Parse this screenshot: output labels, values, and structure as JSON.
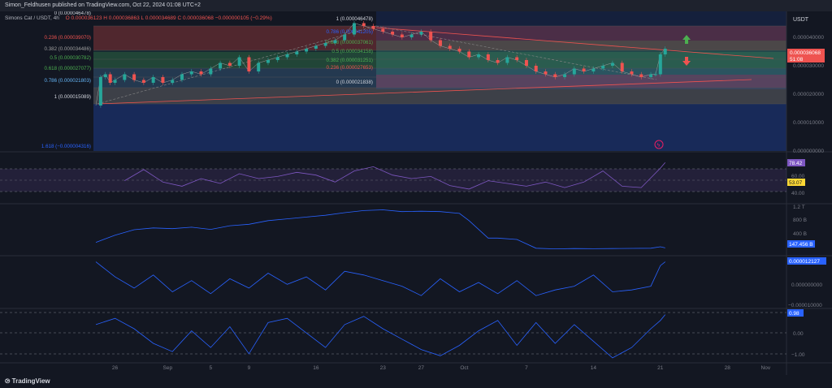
{
  "header": {
    "attribution": "Simon_Feldhusen published on TradingView.com, Oct 22, 2024 01:08 UTC+2"
  },
  "symbol": {
    "name": "Simons Cat / USDT, 4h",
    "ohlc": "O 0.000036123  H 0.000036863  L 0.000034689  C 0.000036068  −0.000000105 (−0.29%)",
    "currency": "USDT"
  },
  "price_badge": {
    "price": "0.000036068",
    "countdown": "51:08"
  },
  "colors": {
    "up": "#26a69a",
    "down": "#ef5350",
    "rsi": "#7e57c2",
    "line": "#2962ff",
    "bg": "#131722"
  },
  "fib_left": [
    {
      "label": "0 (0.000046478)"
    },
    {
      "label": "0.236 (0.000039070)"
    },
    {
      "label": "0.382 (0.000034486)"
    },
    {
      "label": "0.5 (0.000030782)"
    },
    {
      "label": "0.618 (0.000027077)"
    },
    {
      "label": "0.786 (0.000021803)"
    },
    {
      "label": "1 (0.000015089)"
    },
    {
      "label": "1.618 (−0.000004316)"
    }
  ],
  "fib_right": [
    {
      "label": "1 (0.000046478)"
    },
    {
      "label": "0.786 (0.000041205)"
    },
    {
      "label": "0.618 (0.000037061)"
    },
    {
      "label": "0.5 (0.000034158)"
    },
    {
      "label": "0.382 (0.000031251)"
    },
    {
      "label": "0.236 (0.000027653)"
    },
    {
      "label": "0 (0.000021838)"
    }
  ],
  "price_axis": [
    {
      "label": "0.000040000",
      "v": 40
    },
    {
      "label": "0.000030000",
      "v": 30
    },
    {
      "label": "0.000020000",
      "v": 20
    },
    {
      "label": "0.000010000",
      "v": 10
    },
    {
      "label": "0.000000000",
      "v": 0
    }
  ],
  "rsi_axis": {
    "badge": "78.42",
    "sma_badge": "53.07",
    "ticks": [
      "60.00",
      "40.00"
    ]
  },
  "obv_axis": {
    "ticks": [
      "1.2 T",
      "800 B",
      "400 B"
    ],
    "badge": "147.456 B"
  },
  "osc3_axis": {
    "badge": "0.000012127",
    "ticks": [
      "0.000000000",
      "−0.000010000"
    ]
  },
  "osc4_axis": {
    "badge": "0.98",
    "ticks": [
      "0.00",
      "−1.00"
    ]
  },
  "time_axis": [
    {
      "label": "26",
      "t": 26
    },
    {
      "label": "Sep",
      "t": 37
    },
    {
      "label": "5",
      "t": 46
    },
    {
      "label": "9",
      "t": 54
    },
    {
      "label": "16",
      "t": 68
    },
    {
      "label": "23",
      "t": 82
    },
    {
      "label": "27",
      "t": 90
    },
    {
      "label": "Oct",
      "t": 99
    },
    {
      "label": "7",
      "t": 112
    },
    {
      "label": "14",
      "t": 126
    },
    {
      "label": "21",
      "t": 140
    },
    {
      "label": "28",
      "t": 154
    },
    {
      "label": "Nov",
      "t": 162
    }
  ],
  "footer": {
    "brand": "TradingView"
  },
  "chart_data": {
    "type": "line",
    "x_unit": "days since Aug 26, 2024 (t=26 is Aug 26)",
    "price_series": {
      "name": "close",
      "x": [
        22,
        23,
        24,
        25,
        26,
        28,
        30,
        32,
        34,
        36,
        38,
        40,
        42,
        44,
        46,
        48,
        50,
        52,
        54,
        56,
        58,
        60,
        62,
        64,
        66,
        68,
        70,
        72,
        74,
        76,
        78,
        80,
        82,
        84,
        86,
        88,
        90,
        92,
        94,
        96,
        98,
        100,
        102,
        104,
        106,
        108,
        110,
        112,
        114,
        116,
        118,
        120,
        122,
        124,
        126,
        128,
        130,
        132,
        134,
        136,
        138,
        139,
        140,
        141
      ],
      "y": [
        16,
        26,
        27,
        24,
        25,
        27,
        25,
        24,
        26,
        24,
        25,
        27,
        28,
        27,
        29,
        31,
        30,
        33,
        28,
        31,
        32,
        33,
        34,
        35,
        36,
        37,
        38,
        39,
        41,
        45,
        44,
        43,
        42,
        41,
        40,
        41,
        42,
        39,
        37,
        36,
        35,
        33,
        34,
        32,
        31,
        33,
        32,
        30,
        28,
        27,
        26,
        27,
        29,
        28,
        29,
        30,
        31,
        28,
        27,
        26,
        27,
        27,
        34,
        36
      ]
    },
    "rsi": {
      "x": [
        28,
        32,
        36,
        40,
        44,
        48,
        52,
        56,
        60,
        64,
        68,
        72,
        76,
        80,
        84,
        88,
        92,
        96,
        100,
        104,
        108,
        112,
        116,
        120,
        124,
        128,
        132,
        136,
        140,
        141
      ],
      "y": [
        52,
        68,
        50,
        44,
        55,
        48,
        62,
        55,
        58,
        64,
        60,
        50,
        66,
        72,
        60,
        55,
        58,
        45,
        40,
        52,
        48,
        44,
        50,
        42,
        50,
        66,
        44,
        42,
        70,
        78
      ]
    },
    "obv": {
      "x": [
        22,
        26,
        30,
        34,
        38,
        42,
        46,
        50,
        54,
        58,
        62,
        66,
        70,
        74,
        78,
        82,
        86,
        90,
        94,
        98,
        100,
        104,
        106,
        110,
        114,
        118,
        122,
        126,
        130,
        134,
        138,
        140,
        141
      ],
      "y": [
        300,
        500,
        650,
        700,
        680,
        720,
        660,
        760,
        800,
        900,
        950,
        1000,
        1050,
        1120,
        1180,
        1200,
        1150,
        1160,
        1150,
        1100,
        900,
        420,
        420,
        380,
        140,
        120,
        130,
        125,
        130,
        135,
        140,
        180,
        147
      ]
    },
    "osc3": {
      "x": [
        22,
        26,
        30,
        34,
        38,
        42,
        46,
        50,
        54,
        58,
        62,
        66,
        70,
        74,
        78,
        82,
        86,
        90,
        94,
        98,
        102,
        106,
        110,
        114,
        118,
        122,
        126,
        130,
        134,
        138,
        140,
        141
      ],
      "y": [
        12,
        4,
        -2,
        5,
        -4,
        2,
        -5,
        3,
        -2,
        6,
        0,
        4,
        -3,
        7,
        5,
        2,
        -1,
        -6,
        3,
        -4,
        1,
        -5,
        2,
        -6,
        -3,
        -1,
        5,
        -4,
        -3,
        -1,
        10,
        12
      ]
    },
    "osc4": {
      "x": [
        22,
        26,
        30,
        34,
        38,
        42,
        46,
        50,
        54,
        58,
        62,
        66,
        70,
        74,
        78,
        82,
        86,
        90,
        94,
        98,
        102,
        106,
        110,
        114,
        118,
        122,
        126,
        130,
        134,
        138,
        140,
        141
      ],
      "y": [
        0.5,
        0.8,
        0.3,
        -0.4,
        -0.8,
        0.2,
        -0.6,
        0.4,
        -0.9,
        0.6,
        0.8,
        0.1,
        -0.6,
        0.5,
        0.9,
        0.3,
        -0.2,
        -0.7,
        -1.0,
        -0.5,
        0.2,
        0.7,
        -0.5,
        0.6,
        -0.4,
        0.5,
        -0.3,
        -1.1,
        -0.6,
        0.3,
        0.7,
        0.98
      ]
    },
    "ylabel": "",
    "xlabel": ""
  }
}
